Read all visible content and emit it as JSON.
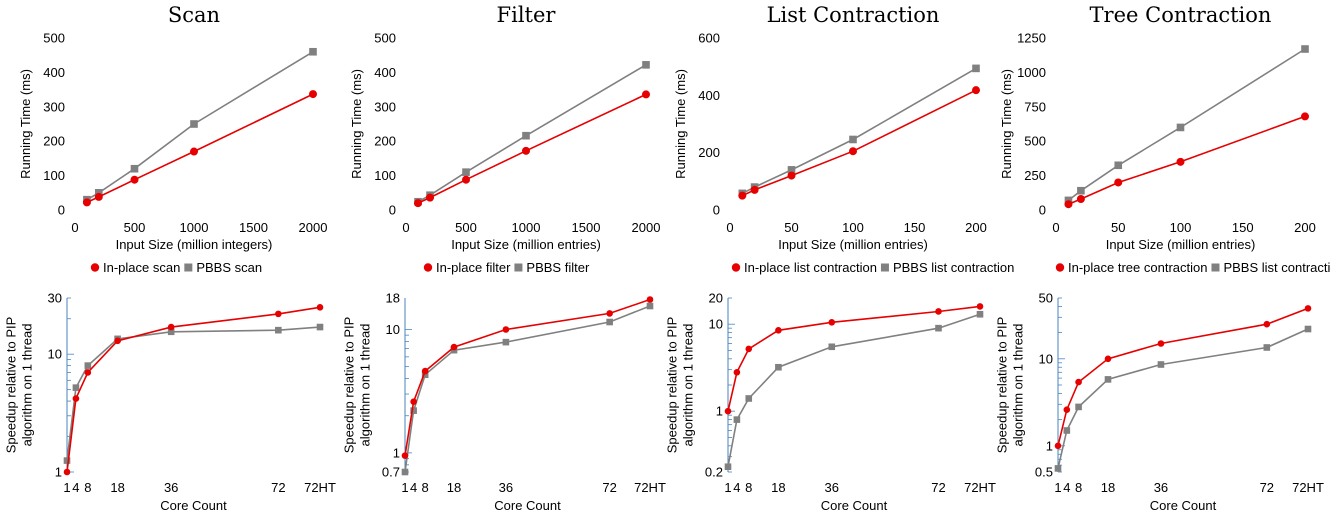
{
  "colors": {
    "inplace": "#e60000",
    "pbbs": "#808080",
    "speedup_axis": "#4a86c0"
  },
  "chart_data": [
    {
      "type": "line",
      "title": "Scan",
      "xlabel": "Input Size (million integers)",
      "ylabel": "Running Time (ms)",
      "xlim": [
        0,
        2000
      ],
      "ylim": [
        0,
        500
      ],
      "xticks": [
        0,
        500,
        1000,
        1500,
        2000
      ],
      "yticks": [
        0,
        100,
        200,
        300,
        400,
        500
      ],
      "x": [
        100,
        200,
        500,
        1000,
        2000
      ],
      "series": [
        {
          "name": "In-place scan",
          "color": "#e60000",
          "marker": "circle",
          "values": [
            22,
            38,
            88,
            170,
            337
          ]
        },
        {
          "name": "PBBS scan",
          "color": "#808080",
          "marker": "square",
          "values": [
            30,
            50,
            120,
            250,
            460
          ]
        }
      ]
    },
    {
      "type": "line",
      "title": "Filter",
      "xlabel": "Input Size (million entries)",
      "ylabel": "Running Time (ms)",
      "xlim": [
        0,
        2000
      ],
      "ylim": [
        0,
        500
      ],
      "xticks": [
        0,
        500,
        1000,
        1500,
        2000
      ],
      "yticks": [
        0,
        100,
        200,
        300,
        400,
        500
      ],
      "x": [
        100,
        200,
        500,
        1000,
        2000
      ],
      "series": [
        {
          "name": "In-place filter",
          "color": "#e60000",
          "marker": "circle",
          "values": [
            20,
            36,
            88,
            172,
            336
          ]
        },
        {
          "name": "PBBS filter",
          "color": "#808080",
          "marker": "square",
          "values": [
            24,
            43,
            110,
            216,
            422
          ]
        }
      ]
    },
    {
      "type": "line",
      "title": "List Contraction",
      "xlabel": "Input Size (million entries)",
      "ylabel": "Running Time (ms)",
      "xlim": [
        0,
        200
      ],
      "ylim": [
        0,
        600
      ],
      "xticks": [
        0,
        50,
        100,
        150,
        200
      ],
      "yticks": [
        0,
        200,
        400,
        600
      ],
      "x": [
        10,
        20,
        50,
        100,
        200
      ],
      "series": [
        {
          "name": "In-place list contraction",
          "color": "#e60000",
          "marker": "circle",
          "values": [
            50,
            70,
            120,
            205,
            418
          ]
        },
        {
          "name": "PBBS list contraction",
          "color": "#808080",
          "marker": "square",
          "values": [
            58,
            80,
            140,
            246,
            494
          ]
        }
      ]
    },
    {
      "type": "line",
      "title": "Tree Contraction",
      "xlabel": "Input Size (million entries)",
      "ylabel": "Running Time (ms)",
      "xlim": [
        0,
        200
      ],
      "ylim": [
        0,
        1250
      ],
      "xticks": [
        0,
        50,
        100,
        150,
        200
      ],
      "yticks": [
        0,
        250,
        500,
        750,
        1000,
        1250
      ],
      "x": [
        10,
        20,
        50,
        100,
        200
      ],
      "series": [
        {
          "name": "In-place tree contraction",
          "color": "#e60000",
          "marker": "circle",
          "values": [
            42,
            80,
            200,
            350,
            680
          ]
        },
        {
          "name": "PBBS list contraction",
          "color": "#808080",
          "marker": "square",
          "values": [
            70,
            140,
            325,
            600,
            1170
          ]
        }
      ]
    },
    {
      "type": "line",
      "xlabel": "Core Count",
      "ylabel": "Speedup relative to PIP\nalgorithm on 1 thread",
      "yscale": "log",
      "ylim": [
        1,
        30
      ],
      "yticks": [
        1,
        10,
        30
      ],
      "xticks": [
        "1",
        "4",
        "8",
        "18",
        "36",
        "72",
        "72HT"
      ],
      "x": [
        1,
        4,
        8,
        18,
        36,
        72,
        72
      ],
      "series": [
        {
          "name": "In-place scan",
          "color": "#e60000",
          "marker": "circle",
          "values": [
            1.0,
            4.2,
            7.0,
            13.0,
            17.0,
            22.0,
            25.0
          ]
        },
        {
          "name": "PBBS scan",
          "color": "#808080",
          "marker": "square",
          "values": [
            1.25,
            5.2,
            8.0,
            13.5,
            15.5,
            16.0,
            17.0
          ]
        }
      ]
    },
    {
      "type": "line",
      "xlabel": "Core Count",
      "ylabel": "Speedup relative to PIP\nalgorithm on 1 thread",
      "yscale": "log",
      "ylim": [
        0.7,
        18
      ],
      "yticks": [
        0.7,
        1,
        10,
        18
      ],
      "xticks": [
        "1",
        "4",
        "8",
        "18",
        "36",
        "72",
        "72HT"
      ],
      "x": [
        1,
        4,
        8,
        18,
        36,
        72,
        72
      ],
      "series": [
        {
          "name": "In-place filter",
          "color": "#e60000",
          "marker": "circle",
          "values": [
            0.95,
            2.6,
            4.6,
            7.2,
            10.0,
            13.5,
            17.5
          ]
        },
        {
          "name": "PBBS filter",
          "color": "#808080",
          "marker": "square",
          "values": [
            0.7,
            2.2,
            4.3,
            6.8,
            7.9,
            11.5,
            15.5
          ]
        }
      ]
    },
    {
      "type": "line",
      "xlabel": "Core Count",
      "ylabel": "Speedup relative to PIP\nalgorithm on 1 thread",
      "yscale": "log",
      "ylim": [
        0.2,
        20
      ],
      "yticks": [
        0.2,
        1,
        10,
        20
      ],
      "xticks": [
        "1",
        "4",
        "8",
        "18",
        "36",
        "72",
        "72HT"
      ],
      "x": [
        1,
        4,
        8,
        18,
        36,
        72,
        72
      ],
      "series": [
        {
          "name": "In-place list contraction",
          "color": "#e60000",
          "marker": "circle",
          "values": [
            1.0,
            2.8,
            5.2,
            8.5,
            10.5,
            14.0,
            16.0
          ]
        },
        {
          "name": "PBBS list contraction",
          "color": "#808080",
          "marker": "square",
          "values": [
            0.23,
            0.8,
            1.4,
            3.2,
            5.5,
            9.0,
            13.0
          ]
        }
      ]
    },
    {
      "type": "line",
      "xlabel": "Core Count",
      "ylabel": "Speedup relative to PIP\nalgorithm on 1 thread",
      "yscale": "log",
      "ylim": [
        0.5,
        50
      ],
      "yticks": [
        0.5,
        1,
        10,
        50
      ],
      "xticks": [
        "1",
        "4",
        "8",
        "18",
        "36",
        "72",
        "72HT"
      ],
      "x": [
        1,
        4,
        8,
        18,
        36,
        72,
        72
      ],
      "series": [
        {
          "name": "In-place tree contraction",
          "color": "#e60000",
          "marker": "circle",
          "values": [
            1.0,
            2.6,
            5.4,
            10.0,
            15.0,
            25.0,
            38.0
          ]
        },
        {
          "name": "PBBS list contraction",
          "color": "#808080",
          "marker": "square",
          "values": [
            0.55,
            1.5,
            2.8,
            5.8,
            8.6,
            13.5,
            22.0
          ]
        }
      ]
    }
  ]
}
